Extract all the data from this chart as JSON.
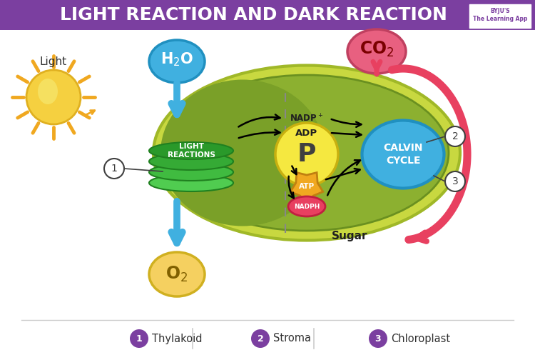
{
  "title": "LIGHT REACTION AND DARK REACTION",
  "title_bg": "#7B3FA0",
  "title_color": "#FFFFFF",
  "bg_color": "#FFFFFF",
  "legend_items": [
    {
      "num": "1",
      "label": "Thylakoid"
    },
    {
      "num": "2",
      "label": "Stroma"
    },
    {
      "num": "3",
      "label": "Chloroplast"
    }
  ],
  "legend_color": "#7B3FA0",
  "chloroplast_outer_color": "#C8D840",
  "chloroplast_inner_color": "#8CB030",
  "chloroplast_left_color": "#7AA028",
  "h2o_color": "#40B0E0",
  "h2o_edge": "#2090C0",
  "co2_color": "#E86080",
  "co2_edge": "#C04060",
  "o2_color": "#F5D060",
  "o2_edge": "#D0B020",
  "light_reactions_colors": [
    "#50CC50",
    "#40BB40",
    "#35AA35",
    "#2A992A"
  ],
  "calvin_color": "#40B0E0",
  "calvin_edge": "#2090C0",
  "p_color": "#F5E840",
  "p_edge": "#C8B010",
  "atp_color": "#F0A820",
  "atp_edge": "#C08010",
  "nadph_color": "#E84060",
  "nadph_edge": "#C02040",
  "sun_color": "#F5D040",
  "sun_edge": "#E0B020",
  "sun_ray_color": "#F0A820",
  "sun_highlight": "#F5E060",
  "arrow_blue": "#40B0E0",
  "arrow_red": "#E84060",
  "arrow_black": "#202020",
  "dashed_line_color": "#888888",
  "num_circle_edge": "#404040",
  "legend_line_color": "#CCCCCC"
}
